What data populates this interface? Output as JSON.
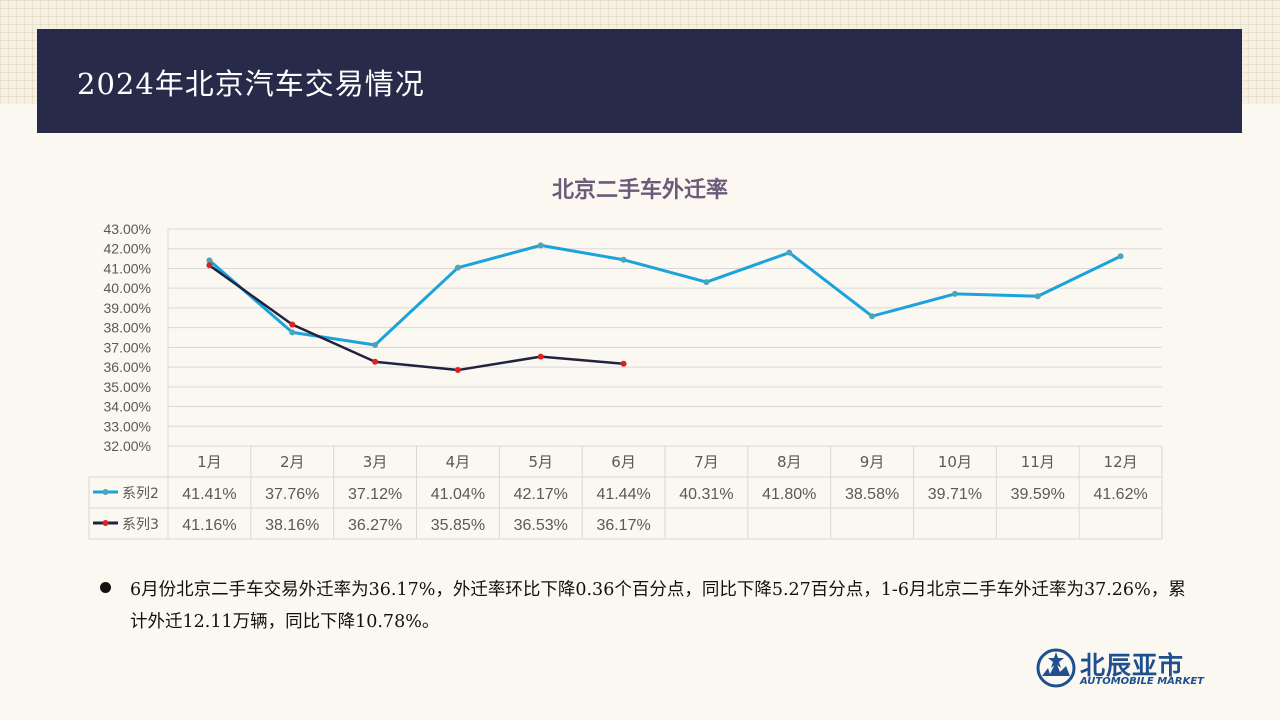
{
  "header": {
    "title": "2024年北京汽车交易情况"
  },
  "chart_data": {
    "type": "line",
    "title": "北京二手车外迁率",
    "categories": [
      "1月",
      "2月",
      "3月",
      "4月",
      "5月",
      "6月",
      "7月",
      "8月",
      "9月",
      "10月",
      "11月",
      "12月"
    ],
    "series": [
      {
        "name": "系列2",
        "color": "#1aa3dc",
        "marker_color": "#4aa6b8",
        "values": [
          41.41,
          37.76,
          37.12,
          41.04,
          42.17,
          41.44,
          40.31,
          41.8,
          38.58,
          39.71,
          39.59,
          41.62
        ],
        "labels": [
          "41.41%",
          "37.76%",
          "37.12%",
          "41.04%",
          "42.17%",
          "41.44%",
          "40.31%",
          "41.80%",
          "38.58%",
          "39.71%",
          "39.59%",
          "41.62%"
        ]
      },
      {
        "name": "系列3",
        "color": "#1f2340",
        "marker_color": "#e02020",
        "values": [
          41.16,
          38.16,
          36.27,
          35.85,
          36.53,
          36.17,
          null,
          null,
          null,
          null,
          null,
          null
        ],
        "labels": [
          "41.16%",
          "38.16%",
          "36.27%",
          "35.85%",
          "36.53%",
          "36.17%",
          "",
          "",
          "",
          "",
          "",
          ""
        ]
      }
    ],
    "ylim": [
      32,
      43
    ],
    "yticks": [
      "43.00%",
      "42.00%",
      "41.00%",
      "40.00%",
      "39.00%",
      "38.00%",
      "37.00%",
      "36.00%",
      "35.00%",
      "34.00%",
      "33.00%",
      "32.00%"
    ],
    "grid": true,
    "data_table": true
  },
  "note": {
    "text": "6月份北京二手车交易外迁率为36.17%，外迁率环比下降0.36个百分点，同比下降5.27百分点，1-6月北京二手车外迁率为37.26%，累计外迁12.11万辆，同比下降10.78%。"
  },
  "logo": {
    "name": "北辰亚市",
    "subtitle": "AUTOMOBILE MARKET",
    "icon": "globe-star-icon"
  }
}
